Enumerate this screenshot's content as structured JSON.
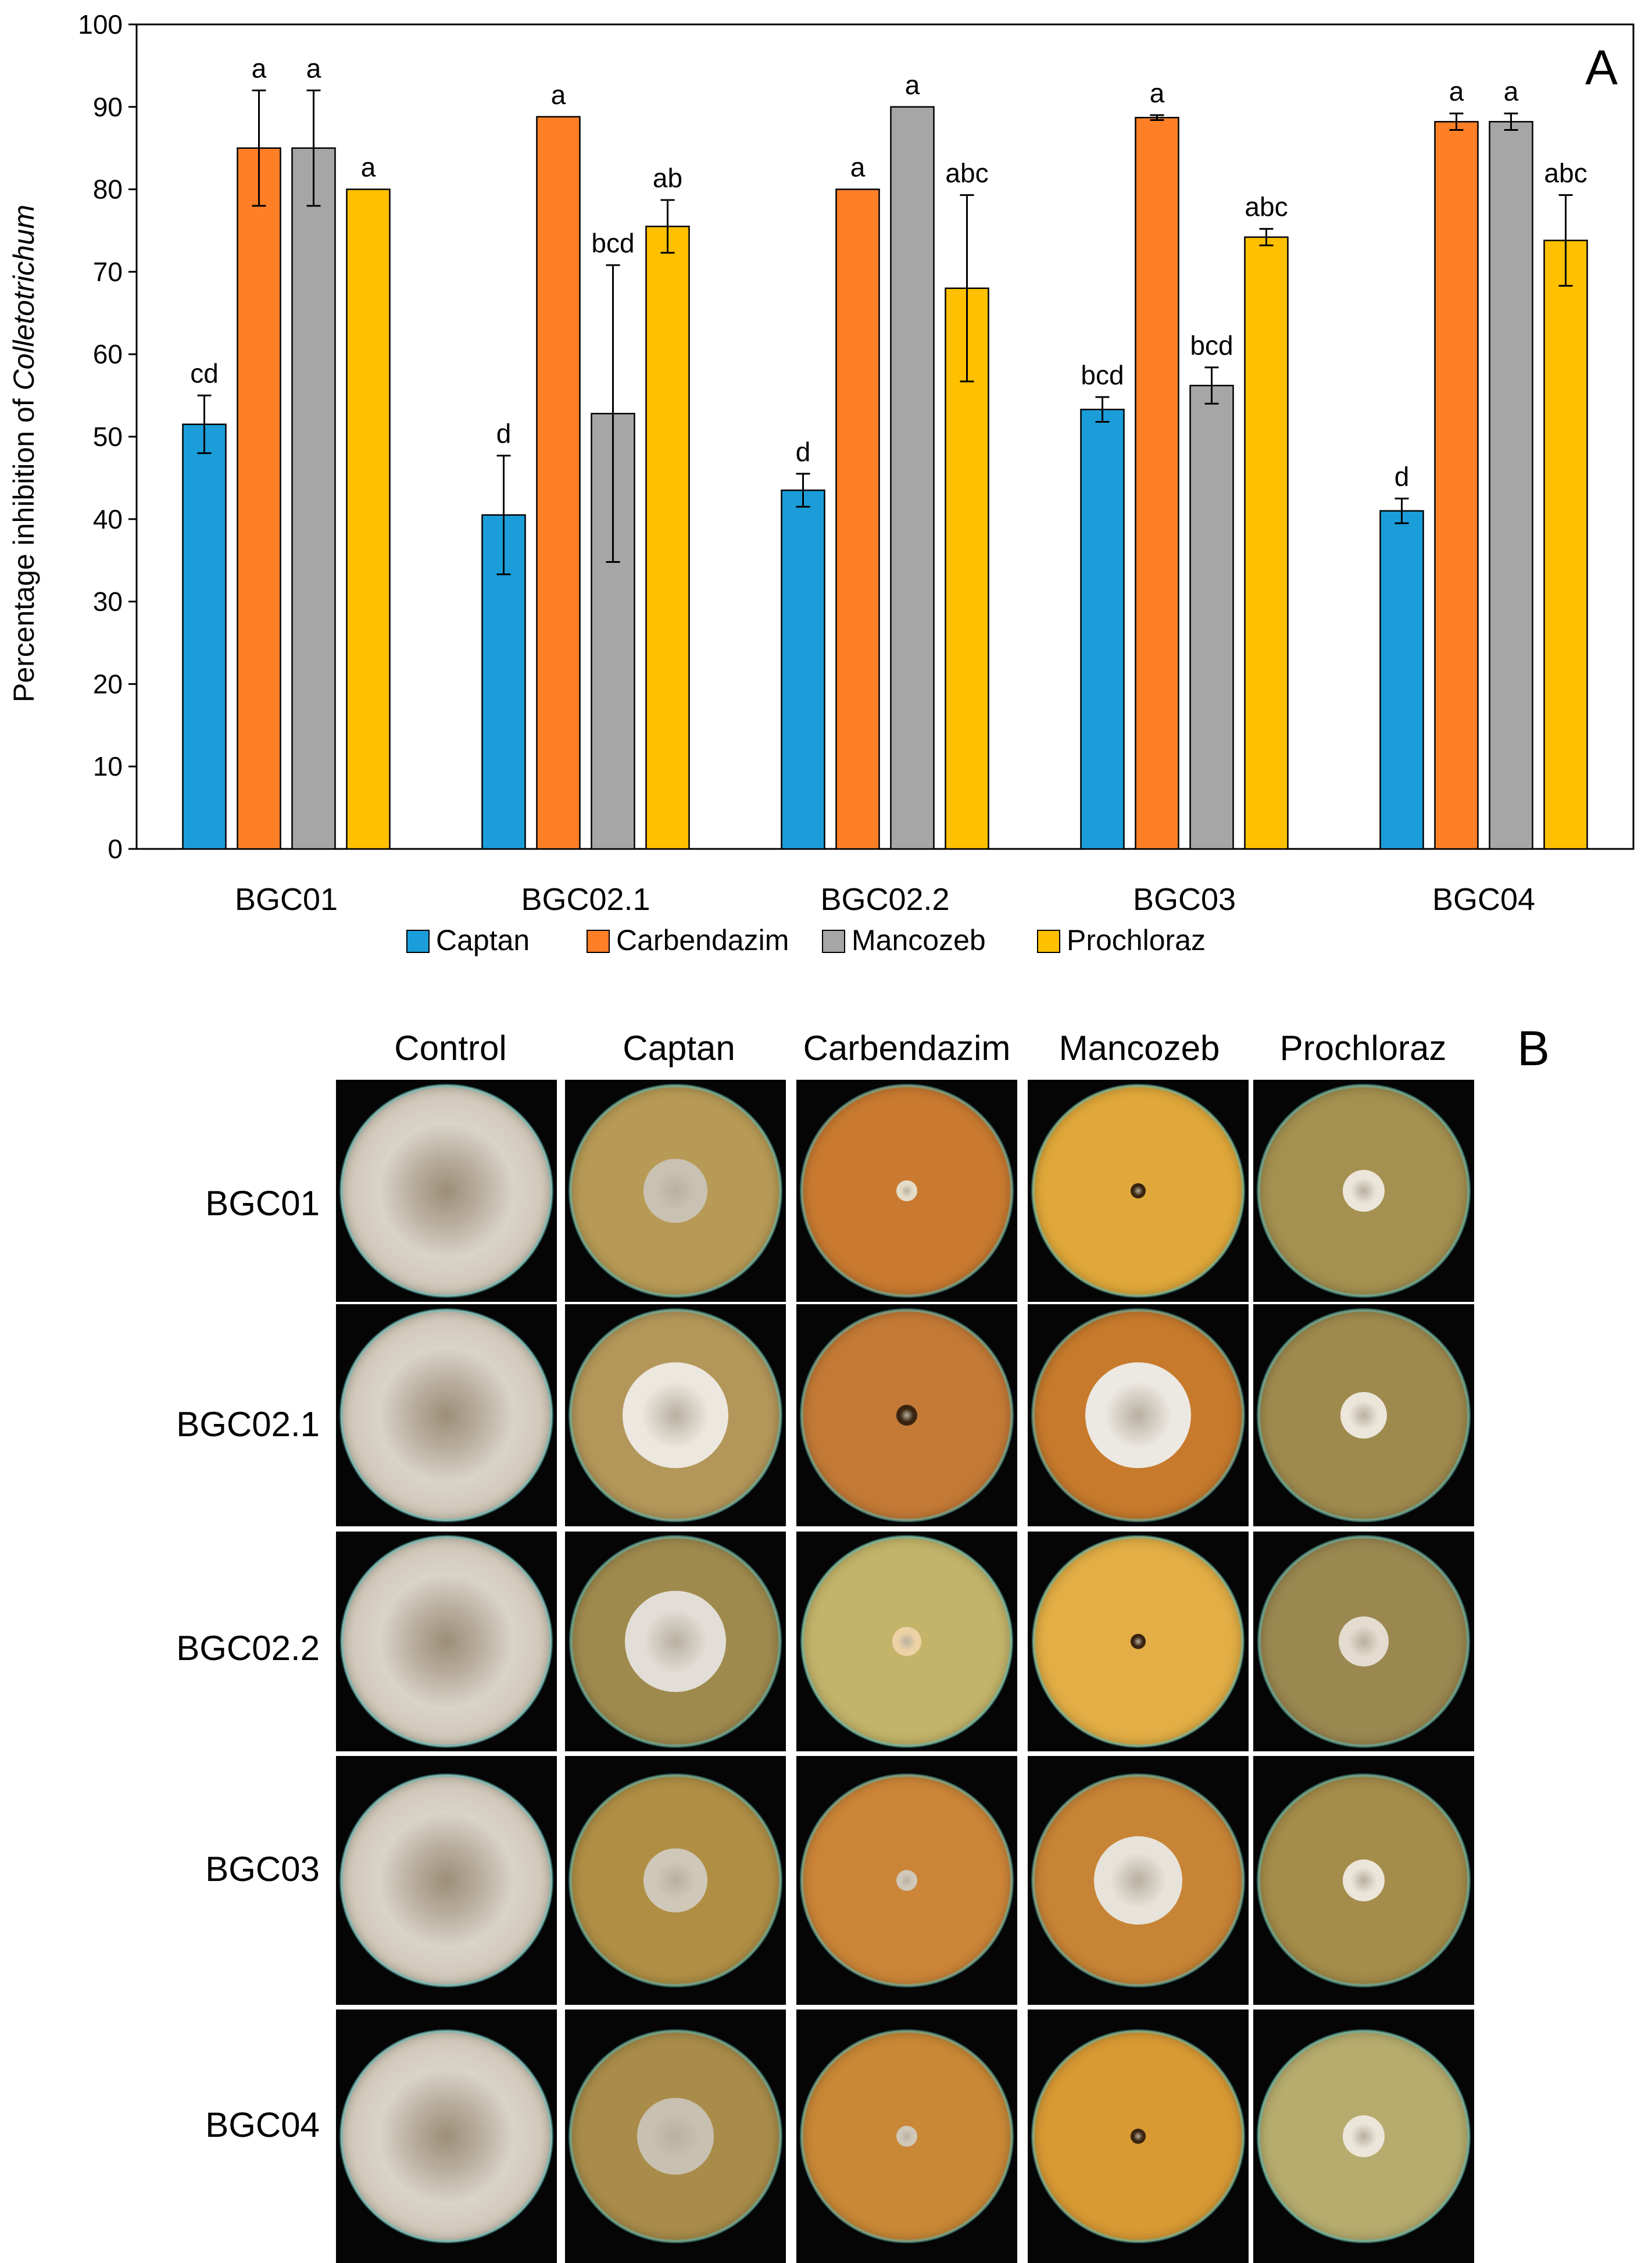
{
  "panel_a_letter": "A",
  "panel_b_letter": "B",
  "chart_data": {
    "type": "bar",
    "title": "",
    "xlabel": "",
    "ylabel_prefix": "Percentage inhibition of ",
    "ylabel_italic": "Colletotrichum",
    "ylim": [
      0,
      100
    ],
    "yticks": [
      0,
      10,
      20,
      30,
      40,
      50,
      60,
      70,
      80,
      90,
      100
    ],
    "grid": false,
    "legend_position": "bottom",
    "categories": [
      "BGC01",
      "BGC02.1",
      "BGC02.2",
      "BGC03",
      "BGC04"
    ],
    "series": [
      {
        "name": "Captan",
        "color": "#1b9dd9",
        "values": [
          51.5,
          40.5,
          43.5,
          53.3,
          41.0
        ],
        "errors": [
          3.5,
          7.2,
          2.0,
          1.5,
          1.5
        ],
        "letters": [
          "cd",
          "d",
          "d",
          "bcd",
          "d"
        ]
      },
      {
        "name": "Carbendazim",
        "color": "#ff7f27",
        "values": [
          85.0,
          88.8,
          80.0,
          88.7,
          88.2
        ],
        "errors": [
          7.0,
          0,
          0,
          0.3,
          1.0
        ],
        "letters": [
          "a",
          "a",
          "a",
          "a",
          "a"
        ]
      },
      {
        "name": "Mancozeb",
        "color": "#a6a6a6",
        "values": [
          85.0,
          52.8,
          90.0,
          56.2,
          88.2
        ],
        "errors": [
          7.0,
          18.0,
          0,
          2.2,
          1.0
        ],
        "letters": [
          "a",
          "bcd",
          "a",
          "bcd",
          "a"
        ]
      },
      {
        "name": "Prochloraz",
        "color": "#ffc000",
        "values": [
          80.0,
          75.5,
          68.0,
          74.2,
          73.8
        ],
        "errors": [
          0,
          3.2,
          11.3,
          1.0,
          5.5
        ],
        "letters": [
          "a",
          "ab",
          "abc",
          "abc",
          "abc"
        ]
      }
    ]
  },
  "plates": {
    "columns": [
      "Control",
      "Captan",
      "Carbendazim",
      "Mancozeb",
      "Prochloraz"
    ],
    "rows": [
      "BGC01",
      "BGC02.1",
      "BGC02.2",
      "BGC03",
      "BGC04"
    ]
  }
}
